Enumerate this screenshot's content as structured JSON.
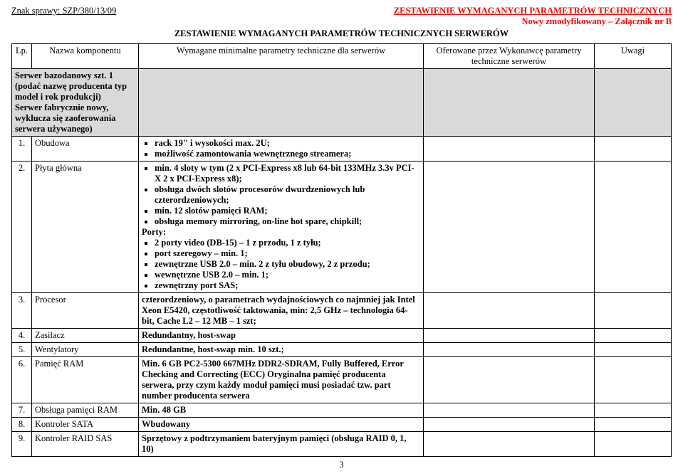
{
  "header": {
    "case_label": "Znak sprawy: SZP/380/13/09",
    "title_right": "ZESTAWIENIE WYMAGANYCH PARAMETRÓW TECHNICZNYCH",
    "subtitle_right": "Nowy zmodyfikowany – Załącznik nr B",
    "title_center": "ZESTAWIENIE WYMAGANYCH PARAMETRÓW TECHNICZNYCH  SERWERÓW"
  },
  "columns": {
    "lp": "Lp.",
    "name": "Nazwa komponentu",
    "spec": "Wymagane minimalne parametry techniczne dla serwerów",
    "offer": "Oferowane przez Wykonawcę parametry techniczne serwerów",
    "uwagi": "Uwagi"
  },
  "section": {
    "line1": "Serwer bazodanowy szt. 1 (podać nazwę producenta typ model i rok produkcji)",
    "line2": "Serwer fabrycznie nowy, wyklucza się zaoferowania serwera używanego)"
  },
  "rows": {
    "r1": {
      "lp": "1.",
      "name": "Obudowa",
      "b1": "rack 19\" i wysokości max. 2U;",
      "b2": "możliwość zamontowania wewnętrznego streamera;"
    },
    "r2": {
      "lp": "2.",
      "name": "Płyta główna",
      "b1": "min. 4 sloty w tym (2 x PCI-Express x8 lub 64-bit 133MHz 3.3v PCI-X 2 x PCI-Express x8);",
      "b2": "obsługa dwóch slotów procesorów dwurdzeniowych lub czterordzeniowych;",
      "b3": "min. 12 slotów pamięci RAM;",
      "b4": "obsługa memory mirroring, on-line hot spare, chipkill;",
      "porty_label": "Porty:",
      "p1": "2 porty video (DB-15) – 1 z przodu, 1 z tyłu;",
      "p2": "port szeregowy – min. 1;",
      "p3": "zewnętrzne USB 2.0 – min. 2 z tyłu obudowy, 2 z przodu;",
      "p4": "wewnętrzne USB 2.0 – min. 1;",
      "p5": "zewnętrzny port SAS;"
    },
    "r3": {
      "lp": "3.",
      "name": "Procesor",
      "text": "czterordzeniowy, o parametrach wydajnościowych co najmniej jak Intel Xeon E5420, częstotliwość taktowania, min: 2,5 GHz – technologia 64-bit, Cache L2 – 12 MB – 1 szt;"
    },
    "r4": {
      "lp": "4.",
      "name": "Zasilacz",
      "text": "Redundantny, host-swap"
    },
    "r5": {
      "lp": "5.",
      "name": "Wentylatory",
      "text": "Redundantne, host-swap min. 10 szt.;"
    },
    "r6": {
      "lp": "6.",
      "name": "Pamięć RAM",
      "text": "Min. 6 GB PC2-5300 667MHz DDR2-SDRAM, Fully Buffered, Error Checking and Correcting (ECC) Oryginalna pamięć producenta serwera, przy czym każdy moduł pamięci musi posiadać tzw. part number producenta serwera"
    },
    "r7": {
      "lp": "7.",
      "name": "Obsługa pamięci RAM",
      "text": "Min. 48 GB"
    },
    "r8": {
      "lp": "8.",
      "name": "Kontroler SATA",
      "text": "Wbudowany"
    },
    "r9": {
      "lp": "9.",
      "name": "Kontroler RAID SAS",
      "text": "Sprzętowy z podtrzymaniem bateryjnym pamięci (obsługa RAID 0, 1, 10)"
    }
  },
  "page_number": "3"
}
